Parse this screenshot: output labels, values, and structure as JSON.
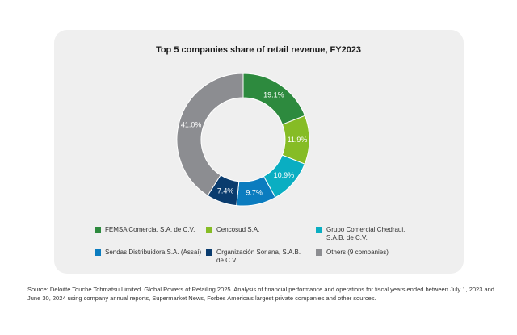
{
  "chart_data": {
    "type": "pie",
    "donut": true,
    "title": "Top 5 companies share of retail revenue, FY2023",
    "unit": "%",
    "series": [
      {
        "name": "FEMSA Comercia, S.A. de C.V.",
        "value": 19.1,
        "label": "19.1%",
        "color": "#2d8a3e"
      },
      {
        "name": "Cencosud S.A.",
        "value": 11.9,
        "label": "11.9%",
        "color": "#86bc25"
      },
      {
        "name": "Grupo Comercial Chedraui,\nS.A.B. de C.V.",
        "value": 10.9,
        "label": "10.9%",
        "color": "#0aaec2"
      },
      {
        "name": "Sendas Distribuidora S.A. (Assaí)",
        "value": 9.7,
        "label": "9.7%",
        "color": "#0b7cbf"
      },
      {
        "name": "Organización Soriana, S.A.B.\nde C.V.",
        "value": 7.4,
        "label": "7.4%",
        "color": "#0a3c6e"
      },
      {
        "name": "Others (9 companies)",
        "value": 41.0,
        "label": "41.0%",
        "color": "#8c8d91"
      }
    ]
  },
  "source": "Source: Deloitte Touche Tohmatsu Limited. Global Powers of Retailing 2025. Analysis of financial performance and operations for fiscal years ended between July 1, 2023 and June 30, 2024 using company annual reports, Supermarket News, Forbes America's largest private companies and other sources."
}
